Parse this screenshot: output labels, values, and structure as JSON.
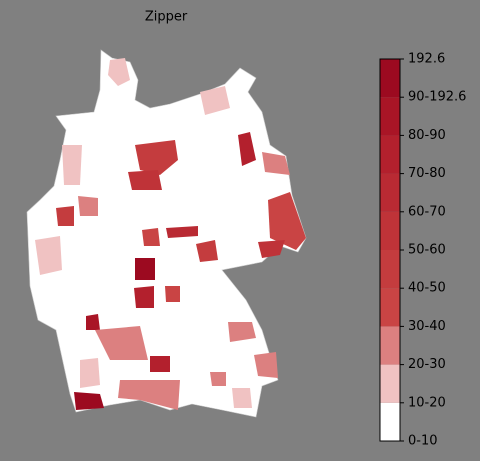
{
  "title": "Zipper",
  "colorbar": {
    "labels": [
      "0-10",
      "10-20",
      "20-30",
      "30-40",
      "40-50",
      "50-60",
      "60-70",
      "70-80",
      "80-90",
      "90-192.6",
      "192.6"
    ],
    "colors": [
      "#ffffff",
      "#f0c2c2",
      "#dc8080",
      "#c94444",
      "#c43c3e",
      "#bf3338",
      "#b92a33",
      "#b3202d",
      "#a91526",
      "#9c0a20"
    ]
  }
}
